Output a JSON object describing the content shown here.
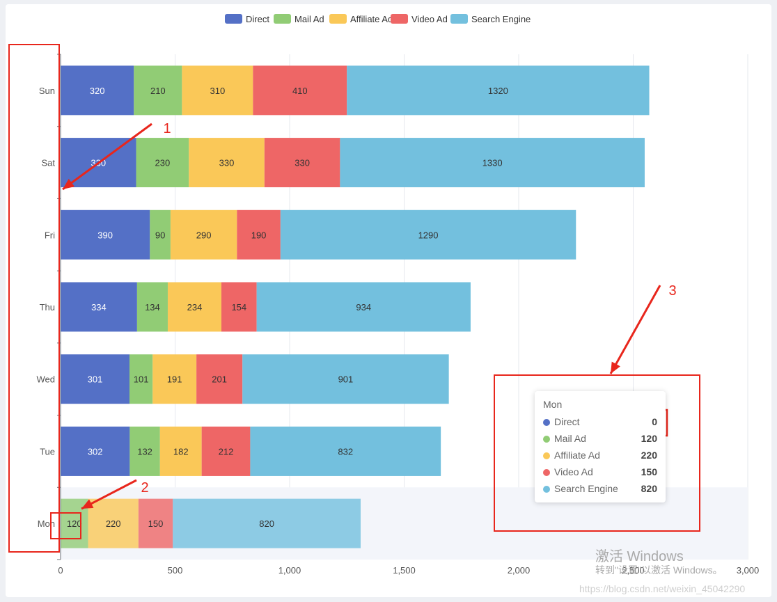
{
  "chart_data": {
    "type": "bar",
    "orientation": "horizontal",
    "stacked": true,
    "categories": [
      "Mon",
      "Tue",
      "Wed",
      "Thu",
      "Fri",
      "Sat",
      "Sun"
    ],
    "series": [
      {
        "name": "Direct",
        "color": "#5470c6",
        "values": [
          0,
          302,
          301,
          334,
          390,
          330,
          320
        ]
      },
      {
        "name": "Mail Ad",
        "color": "#91cc75",
        "values": [
          120,
          132,
          101,
          134,
          90,
          230,
          210
        ]
      },
      {
        "name": "Affiliate Ad",
        "color": "#fac858",
        "values": [
          220,
          182,
          191,
          234,
          290,
          330,
          310
        ]
      },
      {
        "name": "Video Ad",
        "color": "#ee6666",
        "values": [
          150,
          212,
          201,
          154,
          190,
          330,
          410
        ]
      },
      {
        "name": "Search Engine",
        "color": "#73c0de",
        "values": [
          820,
          832,
          901,
          934,
          1290,
          1330,
          1320
        ]
      }
    ],
    "xlim": [
      0,
      3000
    ],
    "xticks": [
      "0",
      "500",
      "1,000",
      "1,500",
      "2,000",
      "2,500",
      "3,000"
    ],
    "legend_position": "top-center",
    "grid": true,
    "highlighted_category": "Mon"
  },
  "tooltip": {
    "title": "Mon",
    "rows": [
      {
        "name": "Direct",
        "value": "0",
        "color": "#5470c6"
      },
      {
        "name": "Mail Ad",
        "value": "120",
        "color": "#91cc75"
      },
      {
        "name": "Affiliate Ad",
        "value": "220",
        "color": "#fac858"
      },
      {
        "name": "Video Ad",
        "value": "150",
        "color": "#ee6666"
      },
      {
        "name": "Search Engine",
        "value": "820",
        "color": "#73c0de"
      }
    ]
  },
  "annotations": {
    "labels": [
      "1",
      "2",
      "3"
    ],
    "color": "#e8261c"
  },
  "watermark": {
    "line1": "激活 Windows",
    "line2": "转到\"设置\"以激活 Windows。",
    "url": "https://blog.csdn.net/weixin_45042290"
  }
}
